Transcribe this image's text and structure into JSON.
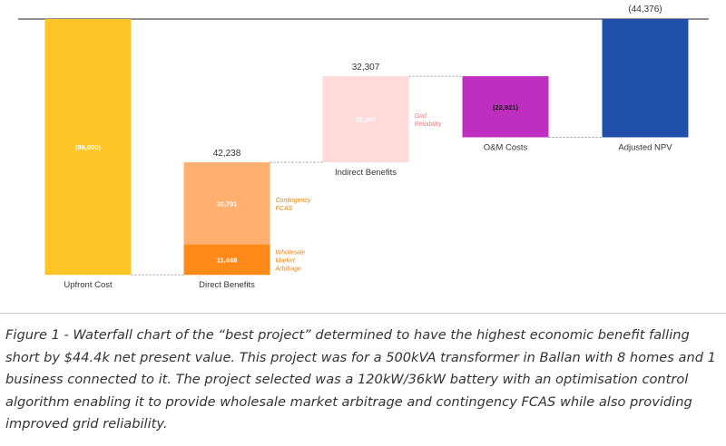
{
  "chart_data": {
    "type": "waterfall",
    "title": "",
    "xlabel": "",
    "ylabel": "",
    "units": "$",
    "ylim": [
      -100000,
      0
    ],
    "categories": [
      "Upfront Cost",
      "Direct Benefits",
      "Indirect Benefits",
      "O&M Costs",
      "Adjusted NPV"
    ],
    "totals": [
      "",
      "42,238",
      "32,307",
      "",
      "(44,376)"
    ],
    "segments": [
      {
        "category": "Upfront Cost",
        "value": -96000,
        "start": 0,
        "end": -96000,
        "label": "(96,000)",
        "name": "",
        "color": "#FFC526",
        "label_color": "#ffffff",
        "label_offset": "inside"
      },
      {
        "category": "Direct Benefits",
        "value": 11448,
        "start": -96000,
        "end": -84552,
        "label": "11,448",
        "name": "Wholesale Market Arbitrage",
        "color": "#FF8A1A",
        "label_color": "#ffffff",
        "label_offset": "inside"
      },
      {
        "category": "Direct Benefits",
        "value": 30791,
        "start": -84552,
        "end": -53761,
        "label": "30,791",
        "name": "Contingency FCAS",
        "color": "#FFB070",
        "label_color": "#ffffff",
        "label_offset": "inside"
      },
      {
        "category": "Indirect Benefits",
        "value": 32307,
        "start": -53761,
        "end": -21454,
        "label": "32,307",
        "name": "Grid Reliability",
        "color": "#FFDAD9",
        "label_color": "#ffffff",
        "label_offset": "inside"
      },
      {
        "category": "O&M Costs",
        "value": -22921,
        "start": -21454,
        "end": -44375,
        "label": "(22,921)",
        "name": "",
        "color": "#BF2FBF",
        "label_color": "#1a1a1a",
        "label_offset": "inside"
      },
      {
        "category": "Adjusted NPV",
        "value": -44376,
        "start": 0,
        "end": -44376,
        "label": "",
        "name": "",
        "color": "#1F4FA8",
        "label_color": "#ffffff",
        "label_offset": "inside"
      }
    ],
    "annotations": {
      "direct_total": "42,238",
      "indirect_total": "32,307",
      "npv_total": "(44,376)"
    },
    "segment_name_colors": {
      "Contingency FCAS": "#E8850F",
      "Wholesale Market Arbitrage": "#E8850F",
      "Grid Reliability": "#F07A7A"
    },
    "grid": false,
    "legend": "none"
  },
  "caption": "Figure 1 - Waterfall chart of the “best project” determined to have the highest economic benefit falling short by $44.4k net present value. This project was for a 500kVA transformer in Ballan with 8 homes and 1 business connected to it. The project selected was a 120kW/36kW battery with an optimisation control algorithm enabling it to provide wholesale market arbitrage and contingency FCAS while also providing improved grid reliability.",
  "colors": {
    "axis": "#4d4d4d",
    "connector": "#9a9a9a",
    "category_text": "#333333",
    "total_text": "#333333"
  }
}
